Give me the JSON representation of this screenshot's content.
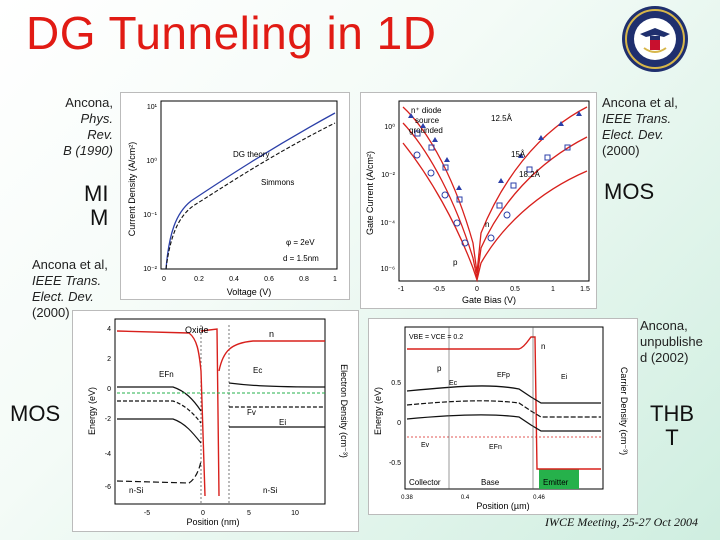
{
  "slide": {
    "title": "DG Tunneling in 1D",
    "footer": "IWCE Meeting, 25-27 Oct 2004"
  },
  "labels": {
    "mim_ref": "Ancona, Phys. Rev. B (1990)",
    "mim_ref_a": "Ancona,",
    "mim_ref_b": "Phys. Rev.",
    "mim_ref_c": "B (1990)",
    "mim_big_1": "MI",
    "mim_big_2": "M",
    "mos_top_ref_1": "Ancona et al,",
    "mos_top_ref_2": "IEEE Trans.",
    "mos_top_ref_3": "Elect. Dev.",
    "mos_top_ref_4": "(2000)",
    "mos_top_big": "MOS",
    "mos_left_ref_1": "Ancona et al,",
    "mos_left_ref_2": "IEEE Trans.",
    "mos_left_ref_3": "Elect. Dev.",
    "mos_left_ref_4": "(2000)",
    "mos_left_big": "MOS",
    "thbt_ref_1": "Ancona,",
    "thbt_ref_2": "unpublishe",
    "thbt_ref_3": "d (2002)",
    "thbt_big_1": "THB",
    "thbt_big_2": "T"
  },
  "plots": {
    "mim": {
      "ylabel": "Current Density (A/cm²)",
      "xlabel": "Voltage (V)",
      "xticks": [
        "0",
        "0.2",
        "0.4",
        "0.6",
        "0.8",
        "1"
      ],
      "yticks": [
        "10¹",
        "10⁰",
        "10⁻¹",
        "10⁻²"
      ],
      "legend_dg": "DG theory",
      "legend_simmons": "Simmons",
      "param_phi": "φ = 2eV",
      "param_d": "d = 1.5nm"
    },
    "gate": {
      "ylabel": "Gate Current (A/cm²)",
      "xlabel": "Gate Bias (V)",
      "xticks": [
        "-1",
        "-0.5",
        "0",
        "0.5",
        "1",
        "1.5"
      ],
      "yticks": [
        "10⁰",
        "10⁻²",
        "10⁻⁴",
        "10⁻⁶"
      ],
      "ann_diode_1": "n⁺ diode",
      "ann_diode_2": "source",
      "ann_diode_3": "grounded",
      "ann_125": "12.5Å",
      "ann_15": "15Å",
      "ann_182": "18.2Å",
      "ann_n": "n",
      "ann_p": "p"
    },
    "mos_band": {
      "ylabel": "Energy (eV)",
      "ylabel2": "Electron Density (cm⁻³)",
      "xlabel": "Position (nm)",
      "xticks": [
        "-5",
        "0",
        "5",
        "10"
      ],
      "yticks": [
        "4",
        "2",
        "0",
        "-2",
        "-4",
        "-6"
      ],
      "ann_oxide": "Oxide",
      "ann_n": "n",
      "ann_efn": "EFn",
      "ann_ec": "Ec",
      "ann_fv": "Fv",
      "ann_ei": "Ei",
      "ann_nsi_left": "n-Si",
      "ann_nsi_right": "n-Si"
    },
    "thbt": {
      "ylabel": "Energy (eV)",
      "ylabel2": "Carrier Density (cm⁻³)",
      "xlabel": "Position (µm)",
      "xticks": [
        "0.38",
        "0.4",
        "0.46"
      ],
      "yticks": [
        "0.5",
        "0",
        "-0.5"
      ],
      "ann_vbias": "VBE = VCE = 0.2",
      "ann_n": "n",
      "ann_p": "p",
      "ann_ec": "Ec",
      "ann_efp": "EFp",
      "ann_ei": "Ei",
      "ann_ev": "Ev",
      "ann_efn": "EFn",
      "ann_collector": "Collector",
      "ann_base": "Base",
      "ann_emitter": "Emitter"
    }
  },
  "colors": {
    "title": "#e11b14",
    "plot_red": "#d8201c",
    "plot_blue": "#2b3fa8",
    "plot_green": "#26b14b"
  },
  "icons": {
    "seal": "department-seal-icon"
  }
}
